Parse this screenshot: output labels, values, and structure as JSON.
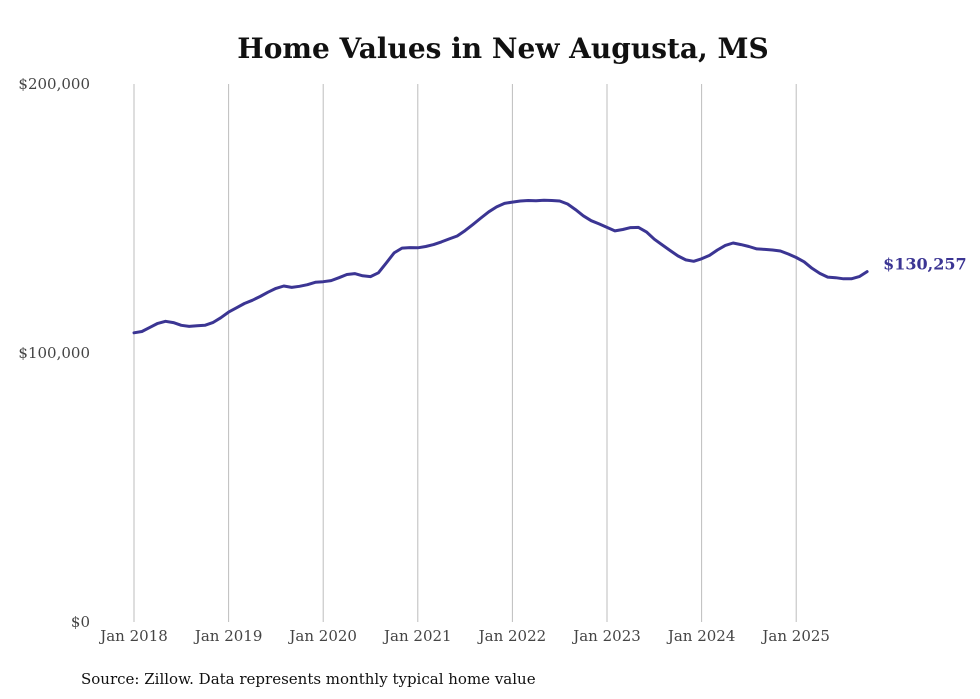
{
  "colors": {
    "line": "#3b3593",
    "grid": "#bdbdbd",
    "text": "#444444"
  },
  "chart_data": {
    "type": "line",
    "title": "Home Values in New Augusta, MS",
    "xlabel": "",
    "ylabel": "",
    "x_ticks": [
      "Jan 2018",
      "Jan 2019",
      "Jan 2020",
      "Jan 2021",
      "Jan 2022",
      "Jan 2023",
      "Jan 2024",
      "Jan 2025"
    ],
    "y_ticks": [
      "$0",
      "$100,000",
      "$200,000"
    ],
    "ylim": [
      0,
      200000
    ],
    "xlim": [
      "2018-01",
      "2025-10"
    ],
    "grid": "vertical",
    "legend": "none",
    "series": [
      {
        "x": [
          "2018-01",
          "2018-02",
          "2018-03",
          "2018-04",
          "2018-05",
          "2018-06",
          "2018-07",
          "2018-08",
          "2018-09",
          "2018-10",
          "2018-11",
          "2018-12",
          "2019-01",
          "2019-02",
          "2019-03",
          "2019-04",
          "2019-05",
          "2019-06",
          "2019-07",
          "2019-08",
          "2019-09",
          "2019-10",
          "2019-11",
          "2019-12",
          "2020-01",
          "2020-02",
          "2020-03",
          "2020-04",
          "2020-05",
          "2020-06",
          "2020-07",
          "2020-08",
          "2020-09",
          "2020-10",
          "2020-11",
          "2020-12",
          "2021-01",
          "2021-02",
          "2021-03",
          "2021-04",
          "2021-05",
          "2021-06",
          "2021-07",
          "2021-08",
          "2021-09",
          "2021-10",
          "2021-11",
          "2021-12",
          "2022-01",
          "2022-02",
          "2022-03",
          "2022-04",
          "2022-05",
          "2022-06",
          "2022-07",
          "2022-08",
          "2022-09",
          "2022-10",
          "2022-11",
          "2022-12",
          "2023-01",
          "2023-02",
          "2023-03",
          "2023-04",
          "2023-05",
          "2023-06",
          "2023-07",
          "2023-08",
          "2023-09",
          "2023-10",
          "2023-11",
          "2023-12",
          "2024-01",
          "2024-02",
          "2024-03",
          "2024-04",
          "2024-05",
          "2024-06",
          "2024-07",
          "2024-08",
          "2024-09",
          "2024-10",
          "2024-11",
          "2024-12",
          "2025-01",
          "2025-02",
          "2025-03",
          "2025-04",
          "2025-05",
          "2025-06",
          "2025-07",
          "2025-08",
          "2025-09",
          "2025-10"
        ],
        "values": [
          107500,
          108000,
          109500,
          111000,
          111800,
          111300,
          110300,
          109900,
          110100,
          110300,
          111300,
          113100,
          115200,
          116800,
          118400,
          119600,
          121000,
          122600,
          124000,
          124900,
          124400,
          124800,
          125400,
          126300,
          126500,
          126900,
          128000,
          129200,
          129500,
          128700,
          128400,
          129800,
          133500,
          137200,
          139000,
          139200,
          139100,
          139600,
          140300,
          141300,
          142400,
          143500,
          145500,
          147800,
          150200,
          152500,
          154300,
          155600,
          156100,
          156500,
          156700,
          156600,
          156800,
          156700,
          156500,
          155400,
          153300,
          151000,
          149200,
          148000,
          146700,
          145400,
          145900,
          146600,
          146700,
          145000,
          142300,
          140200,
          138100,
          136100,
          134600,
          134100,
          135000,
          136300,
          138300,
          140000,
          140900,
          140300,
          139600,
          138700,
          138500,
          138300,
          137900,
          136800,
          135500,
          133900,
          131500,
          129600,
          128200,
          128000,
          127600,
          127600,
          128400,
          130257
        ]
      }
    ],
    "annotations": [
      {
        "text": "$130,257",
        "at": "2025-10"
      }
    ]
  },
  "footer": {
    "source": "Source: Zillow. Data represents monthly typical home value"
  }
}
